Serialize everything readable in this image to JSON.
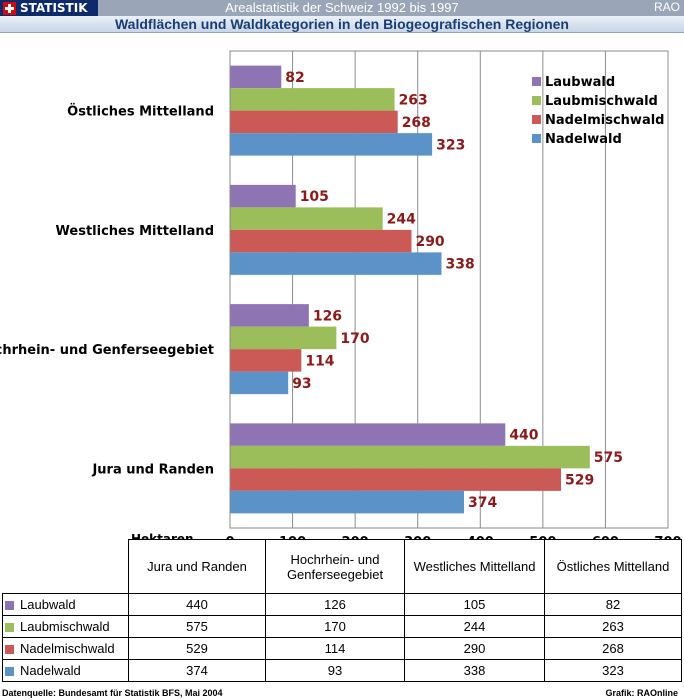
{
  "header": {
    "brand": "STATISTIK",
    "title": "Arealstatistik der Schweiz 1992 bis 1997",
    "corner": "RAO",
    "subtitle": "Waldflächen und Waldkategorien in den Biogeografischen Regionen"
  },
  "chart_data": {
    "type": "bar",
    "orientation": "horizontal",
    "title": "Waldflächen und Waldkategorien in den Biogeografischen Regionen",
    "xlabel": "Hektaren",
    "ylabel": "",
    "xlim": [
      0,
      700
    ],
    "xticks": [
      0,
      100,
      200,
      300,
      400,
      500,
      600,
      700
    ],
    "grid": true,
    "legend_position": "top-right",
    "categories": [
      "Östliches Mittelland",
      "Westliches Mittelland",
      "Hochrhein- und Genferseegebiet",
      "Jura und Randen"
    ],
    "series": [
      {
        "name": "Laubwald",
        "color": "#8f74b4",
        "values": [
          82,
          105,
          126,
          440
        ]
      },
      {
        "name": "Laubmischwald",
        "color": "#9bbd5a",
        "values": [
          263,
          244,
          170,
          575
        ]
      },
      {
        "name": "Nadelmischwald",
        "color": "#cb5a56",
        "values": [
          268,
          290,
          114,
          529
        ]
      },
      {
        "name": "Nadelwald",
        "color": "#5b93c9",
        "values": [
          323,
          338,
          93,
          374
        ]
      }
    ],
    "label_color": "#8b1a1a"
  },
  "table": {
    "columns": [
      "Jura und Randen",
      "Hochrhein- und Genferseegebiet",
      "Westliches Mittelland",
      "Östliches Mittelland"
    ],
    "rows": [
      {
        "label": "Laubwald",
        "color": "#8f74b4",
        "values": [
          "440",
          "126",
          "105",
          "82"
        ]
      },
      {
        "label": "Laubmischwald",
        "color": "#9bbd5a",
        "values": [
          "575",
          "170",
          "244",
          "263"
        ]
      },
      {
        "label": "Nadelmischwald",
        "color": "#cb5a56",
        "values": [
          "529",
          "114",
          "290",
          "268"
        ]
      },
      {
        "label": "Nadelwald",
        "color": "#5b93c9",
        "values": [
          "374",
          "93",
          "338",
          "323"
        ]
      }
    ]
  },
  "footer": {
    "source": "Datenquelle: Bundesamt für Statistik BFS, Mai 2004",
    "credit": "Grafik: RAOnline"
  }
}
